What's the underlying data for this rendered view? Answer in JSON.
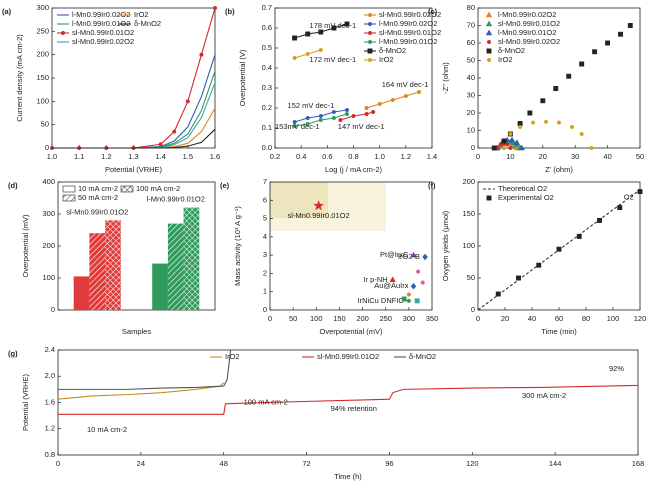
{
  "chart_data": [
    {
      "type": "line",
      "label": "(a)",
      "xlabel": "Potential (VRHE)",
      "ylabel": "Current density (mA cm-2)",
      "x": [
        1.0,
        1.1,
        1.2,
        1.3,
        1.4,
        1.45,
        1.5,
        1.55,
        1.6
      ],
      "xlim": [
        1.0,
        1.6
      ],
      "xticks": [
        {
          "value": 1,
          "label": "1.0"
        },
        1.1,
        1.2,
        1.3,
        1.4,
        1.5,
        1.6
      ],
      "ylim": [
        0,
        300
      ],
      "yticks": [
        0,
        50,
        100,
        150,
        200,
        250,
        300
      ],
      "legend": "upper left",
      "series": [
        {
          "name": "l-Mn0.99Ir0.02O2",
          "color": "#2f5fb5",
          "values": [
            0,
            0,
            0,
            0,
            3,
            15,
            45,
            110,
            200
          ]
        },
        {
          "name": "l-Mn0.99Ir0.01O2",
          "color": "#2e9b5a",
          "values": [
            0,
            0,
            0,
            0,
            2,
            10,
            30,
            80,
            165
          ]
        },
        {
          "name": "sl-Mn0.99Ir0.01O2",
          "color": "#d42a2a",
          "marker": "circle",
          "values": [
            0,
            0,
            0,
            0,
            8,
            35,
            100,
            200,
            300
          ]
        },
        {
          "name": "sl-Mn0.99Ir0.02O2",
          "color": "#3aa7a0",
          "values": [
            0,
            0,
            0,
            0,
            1,
            7,
            22,
            65,
            140
          ]
        },
        {
          "name": "IrO2",
          "color": "#e0861a",
          "values": [
            0,
            0,
            0,
            0,
            0,
            3,
            10,
            35,
            85
          ]
        },
        {
          "name": "δ-MnO2",
          "color": "#222222",
          "values": [
            0,
            0,
            0,
            0,
            0,
            1,
            4,
            12,
            40
          ]
        }
      ]
    },
    {
      "type": "line",
      "label": "(b)",
      "xlabel": "Log (j / mA cm-2)",
      "ylabel": "Overpotential (V)",
      "xlim": [
        0.2,
        1.4
      ],
      "xticks": [
        0.2,
        0.4,
        0.6,
        0.8,
        {
          "value": 1,
          "label": "1.0"
        },
        1.2,
        1.4
      ],
      "ylim": [
        0,
        0.7
      ],
      "yticks": [
        {
          "value": 0,
          "label": "0.0"
        },
        0.1,
        0.2,
        0.3,
        0.4,
        0.5,
        0.6,
        0.7
      ],
      "legend": "upper right",
      "annotations": [
        "178 mV dec-1",
        "172 mV dec-1",
        "152 mV dec-1",
        "153mV dec-1",
        "147 mV dec-1",
        "164 mV dec-1"
      ],
      "series": [
        {
          "name": "sl-Mn0.99Ir0.02O2",
          "color": "#e0861a",
          "marker": "circle",
          "x": [
            0.9,
            1.0,
            1.1,
            1.2,
            1.3
          ],
          "values": [
            0.2,
            0.22,
            0.24,
            0.26,
            0.28
          ]
        },
        {
          "name": "l-Mn0.99Ir0.02O2",
          "color": "#2f5fb5",
          "marker": "circle",
          "x": [
            0.35,
            0.45,
            0.55,
            0.65,
            0.75
          ],
          "values": [
            0.13,
            0.15,
            0.16,
            0.18,
            0.19
          ]
        },
        {
          "name": "sl-Mn0.99Ir0.01O2",
          "color": "#d42a2a",
          "marker": "circle",
          "x": [
            0.7,
            0.8,
            0.9,
            0.95
          ],
          "values": [
            0.14,
            0.16,
            0.17,
            0.18
          ]
        },
        {
          "name": "l-Mn0.99Ir0.01O2",
          "color": "#2e9b5a",
          "marker": "circle",
          "x": [
            0.35,
            0.45,
            0.55,
            0.65,
            0.75
          ],
          "values": [
            0.11,
            0.12,
            0.14,
            0.15,
            0.17
          ]
        },
        {
          "name": "δ-MnO2",
          "color": "#222222",
          "marker": "square",
          "x": [
            0.35,
            0.45,
            0.55,
            0.65,
            0.75
          ],
          "values": [
            0.55,
            0.57,
            0.58,
            0.6,
            0.62
          ]
        },
        {
          "name": "IrO2",
          "color": "#d4a017",
          "marker": "circle",
          "x": [
            0.35,
            0.45,
            0.55
          ],
          "values": [
            0.45,
            0.47,
            0.49
          ]
        }
      ]
    },
    {
      "type": "scatter",
      "label": "(c)",
      "xlabel": "Z' (ohm)",
      "ylabel": "-Z'' (ohm)",
      "xlim": [
        0,
        50
      ],
      "xticks": [
        0,
        10,
        20,
        30,
        40,
        50
      ],
      "ylim": [
        0,
        80
      ],
      "yticks": [
        0,
        10,
        20,
        30,
        40,
        50,
        60,
        70,
        80
      ],
      "legend": "upper left",
      "series": [
        {
          "name": "l-Mn0.99Ir0.02O2",
          "color": "#e0861a",
          "marker": "triangle",
          "x": [
            6,
            7,
            8,
            9,
            10,
            11,
            12
          ],
          "values": [
            0,
            1.5,
            2.5,
            3,
            2.5,
            1.5,
            0
          ]
        },
        {
          "name": "sl-Mn0.99Ir0.01O2",
          "color": "#2e9b5a",
          "marker": "triangle",
          "x": [
            6,
            7,
            8,
            9,
            10,
            11,
            12,
            13
          ],
          "values": [
            0,
            2,
            3,
            3.5,
            3.5,
            3,
            2,
            0
          ]
        },
        {
          "name": "l-Mn0.99Ir0.01O2",
          "color": "#2f5fb5",
          "marker": "triangle",
          "x": [
            6,
            7.5,
            9,
            10.5,
            12,
            13.5
          ],
          "values": [
            0,
            3,
            4.5,
            4.5,
            3,
            0
          ]
        },
        {
          "name": "sl-Mn0.99Ir0.02O2",
          "color": "#d42a2a",
          "marker": "circle",
          "x": [
            6,
            7,
            8,
            9,
            10
          ],
          "values": [
            0,
            2,
            2.5,
            2,
            0
          ]
        },
        {
          "name": "δ-MnO2",
          "color": "#222222",
          "marker": "square",
          "x": [
            5,
            8,
            10,
            13,
            16,
            20,
            24,
            28,
            32,
            36,
            40,
            44,
            47
          ],
          "values": [
            0,
            4,
            8,
            14,
            20,
            27,
            34,
            41,
            48,
            55,
            60,
            65,
            70
          ]
        },
        {
          "name": "IrO2",
          "color": "#d4a017",
          "marker": "circle",
          "x": [
            8,
            10,
            13,
            17,
            21,
            25,
            29,
            32,
            35
          ],
          "values": [
            0,
            8,
            12,
            14.5,
            15,
            14.5,
            12,
            8,
            0
          ]
        }
      ]
    },
    {
      "type": "bar",
      "label": "(d)",
      "xlabel": "Samples",
      "ylabel": "Overpotential (mV)",
      "categories": [
        "sl-Mn0.99Ir0.01O2",
        "l-Mn0.99Ir0.01O2"
      ],
      "category_colors": [
        "#e03b3b",
        "#2e9b5a"
      ],
      "ylim": [
        0,
        400
      ],
      "yticks": [
        0,
        100,
        200,
        300,
        400
      ],
      "legend": "upper left",
      "series": [
        {
          "name": "10 mA cm-2",
          "pattern": "none",
          "values": [
            105,
            145
          ]
        },
        {
          "name": "50 mA cm-2",
          "pattern": "hatch",
          "values": [
            240,
            270
          ]
        },
        {
          "name": "100 mA cm-2",
          "pattern": "crosshatch",
          "values": [
            280,
            320
          ]
        }
      ]
    },
    {
      "type": "scatter",
      "label": "(e)",
      "xlabel": "Overpotential (mV)",
      "ylabel": "Mass activity (10³ A g⁻¹)",
      "xlim": [
        0,
        350
      ],
      "xticks": [
        0,
        50,
        100,
        150,
        200,
        250,
        300,
        350
      ],
      "ylim": [
        0,
        7
      ],
      "yticks": [
        0,
        1,
        2,
        3,
        4,
        5,
        6,
        7
      ],
      "points": [
        {
          "label": "sl-Mn0.99Ir0.01O2",
          "x": 105,
          "y": 5.7,
          "color": "#d42a2a",
          "marker": "star"
        },
        {
          "label": "Pt@IrxC",
          "x": 310,
          "y": 3.0,
          "color": "#8e3fa8",
          "marker": "triangle"
        },
        {
          "label": "IrO2-B",
          "x": 335,
          "y": 2.9,
          "color": "#2f5fb5",
          "marker": "diamond"
        },
        {
          "label": "Ir p-NH",
          "x": 265,
          "y": 1.65,
          "color": "#d42a2a",
          "marker": "triangle"
        },
        {
          "label": "Au@AuIrx",
          "x": 310,
          "y": 1.3,
          "color": "#2f5fb5",
          "marker": "diamond"
        },
        {
          "label": "IrNiCu DNFIC",
          "x": 300,
          "y": 0.5,
          "color": "#2e9b5a",
          "marker": "circle"
        },
        {
          "x": 320,
          "y": 2.1,
          "color": "#e05aa0",
          "marker": "circle"
        },
        {
          "x": 330,
          "y": 1.5,
          "color": "#e05aa0",
          "marker": "circle"
        },
        {
          "x": 290,
          "y": 0.6,
          "color": "#2e9b5a",
          "marker": "square"
        },
        {
          "x": 300,
          "y": 0.85,
          "color": "#e0861a",
          "marker": "circle"
        },
        {
          "x": 318,
          "y": 0.5,
          "color": "#3aa7a0",
          "marker": "square"
        }
      ]
    },
    {
      "type": "line",
      "label": "(f)",
      "xlabel": "Time (min)",
      "ylabel": "Oxygen yields (μmol)",
      "xlim": [
        0,
        120
      ],
      "xticks": [
        0,
        20,
        40,
        60,
        80,
        100,
        120
      ],
      "ylim": [
        0,
        200
      ],
      "yticks": [
        0,
        50,
        100,
        150,
        200
      ],
      "legend": "upper left",
      "annotations": [
        "O2"
      ],
      "series": [
        {
          "name": "Theoretical O2",
          "color": "#333333",
          "dash": true,
          "x": [
            0,
            120
          ],
          "values": [
            0,
            188
          ]
        },
        {
          "name": "Experimental O2",
          "color": "#222222",
          "line": false,
          "marker": "square",
          "x": [
            15,
            30,
            45,
            60,
            75,
            90,
            105,
            120
          ],
          "values": [
            25,
            50,
            70,
            95,
            115,
            140,
            160,
            185
          ]
        }
      ]
    },
    {
      "type": "line",
      "label": "(g)",
      "xlabel": "Time (h)",
      "ylabel": "Potential (VRHE)",
      "xlim": [
        0,
        168
      ],
      "xticks": [
        0,
        24,
        48,
        72,
        96,
        120,
        144,
        168
      ],
      "ylim": [
        0.8,
        2.4
      ],
      "yticks": [
        0.8,
        1.2,
        1.6,
        {
          "value": 2,
          "label": "2.0"
        },
        2.4
      ],
      "legend": "upper center",
      "annotations": [
        "10 mA cm-2",
        "100 mA cm-2",
        "94% retention",
        "300 mA cm-2",
        "92%"
      ],
      "series": [
        {
          "name": "IrO2",
          "color": "#c8891e",
          "x": [
            0,
            10,
            20,
            30,
            40,
            47,
            48
          ],
          "values": [
            1.65,
            1.7,
            1.72,
            1.75,
            1.8,
            1.85,
            1.9
          ]
        },
        {
          "name": "sl-Mn0.99Ir0.01O2",
          "color": "#d42a2a",
          "x": [
            0,
            48,
            48.5,
            60,
            96,
            97,
            100,
            120,
            140,
            168
          ],
          "values": [
            1.42,
            1.42,
            1.58,
            1.6,
            1.65,
            1.75,
            1.8,
            1.82,
            1.83,
            1.86
          ]
        },
        {
          "name": "δ-MnO2",
          "color": "#555555",
          "x": [
            0,
            10,
            20,
            30,
            40,
            48,
            49,
            50
          ],
          "values": [
            1.8,
            1.8,
            1.8,
            1.82,
            1.83,
            1.85,
            1.95,
            2.4
          ]
        }
      ]
    }
  ]
}
